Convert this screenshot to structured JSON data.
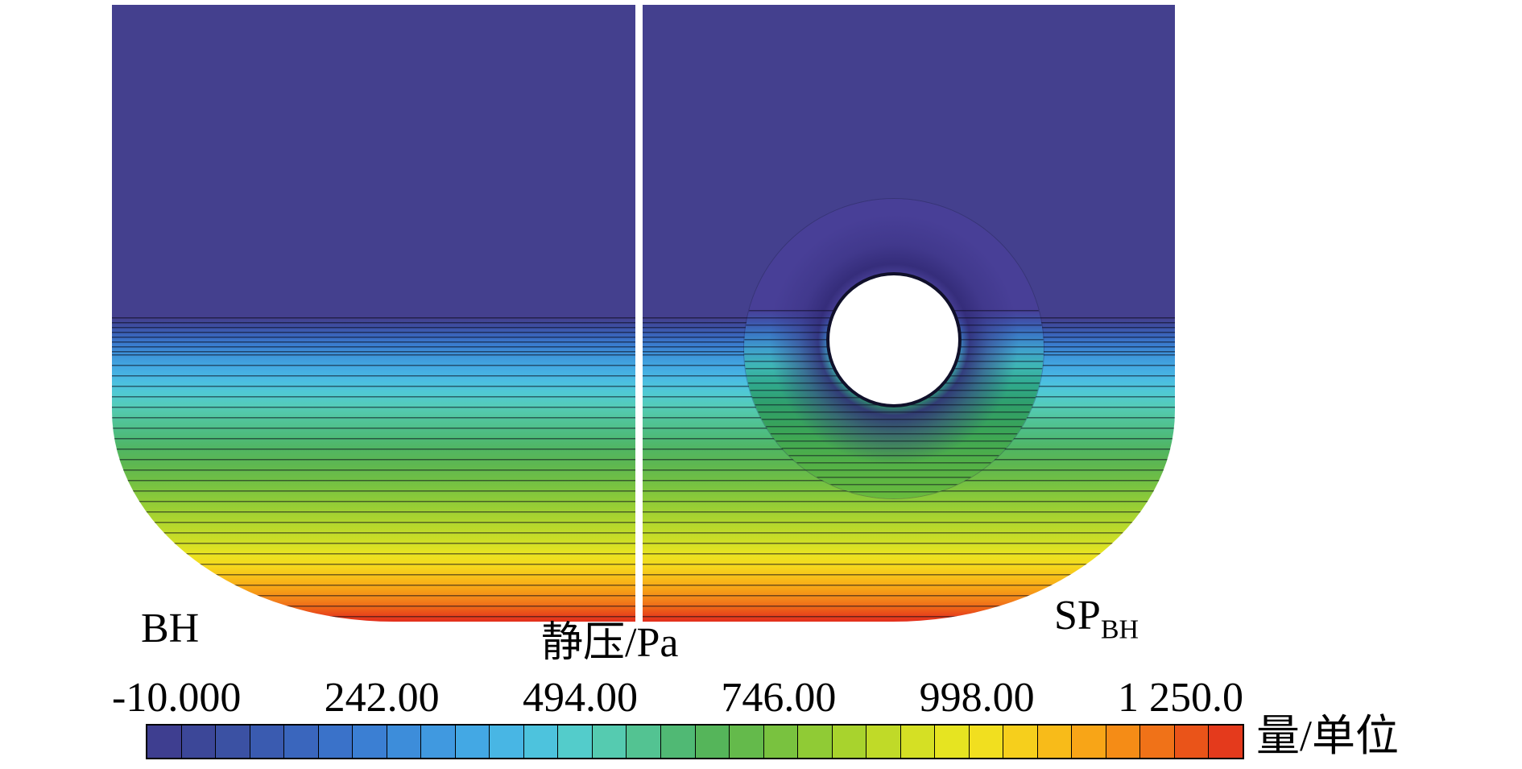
{
  "figure": {
    "title": "静压/Pa",
    "left_panel_label": "BH",
    "right_panel_label_main": "SP",
    "right_panel_label_sub": "BH",
    "colorbar_label": "量/单位"
  },
  "colorbar": {
    "orientation": "horizontal",
    "ticks": [
      "-10.000",
      "242.00",
      "494.00",
      "746.00",
      "998.00",
      "1 250.0"
    ],
    "colors": [
      "#3e3e90",
      "#3c4798",
      "#3b51a3",
      "#3a5bb0",
      "#3a66bd",
      "#3a72c9",
      "#3b7fd3",
      "#3d8dda",
      "#4099e0",
      "#43a8e4",
      "#48b6e4",
      "#4dc3dd",
      "#53cccb",
      "#55cbb0",
      "#53c392",
      "#50b974",
      "#55b55a",
      "#64ba4b",
      "#79c23f",
      "#90cb35",
      "#a8d32d",
      "#c0da28",
      "#d5e024",
      "#e6e421",
      "#f1df1f",
      "#f6cf1c",
      "#f8bb19",
      "#f8a517",
      "#f58c16",
      "#f07218",
      "#ea5419",
      "#e43a1c"
    ],
    "border_color": "#000000"
  },
  "chart_data": {
    "type": "heatmap",
    "title": "静压/Pa",
    "variable": "static pressure (静压)",
    "unit": "Pa",
    "panels": [
      {
        "label": "BH",
        "position": "left-half",
        "features": "plain vessel half: horizontal isobar contour stratification only"
      },
      {
        "label": "SP_BH",
        "position": "right-half",
        "features": "vessel half with torus ring (with central hole) near the low-pressure/graded interface; isobars locally distorted and densified around and below the ring"
      }
    ],
    "geometry": "single U-shaped (round-bottomed) vessel cross-section split vertically by a white divider line into two comparison panels",
    "colorbar": {
      "label": "量/单位",
      "min": -10.0,
      "max": 1250.0,
      "tick_values": [
        -10.0,
        242.0,
        494.0,
        746.0,
        998.0,
        1250.0
      ],
      "tick_labels": [
        "-10.000",
        "242.00",
        "494.00",
        "746.00",
        "998.00",
        "1 250.0"
      ],
      "colormap": "rainbow: indigo -> blue -> cyan -> teal -> green -> yellow-green -> yellow -> orange -> red",
      "segments": 32
    },
    "field_description": "Upper ~50% of vessel depth is uniform minimum pressure (~ -10 Pa, indigo). Below that, pressure increases approximately linearly with depth (hydrostatic-like) to ~1250 Pa (red) at the curved vessel bottom; isobars are thin horizontal black contour lines.",
    "depth_fraction_vs_pressure_Pa": {
      "depth_fraction": [
        0.0,
        0.5,
        0.6,
        0.7,
        0.8,
        0.9,
        1.0
      ],
      "pressure_Pa": [
        -10,
        -10,
        220,
        480,
        740,
        990,
        1250
      ]
    }
  }
}
